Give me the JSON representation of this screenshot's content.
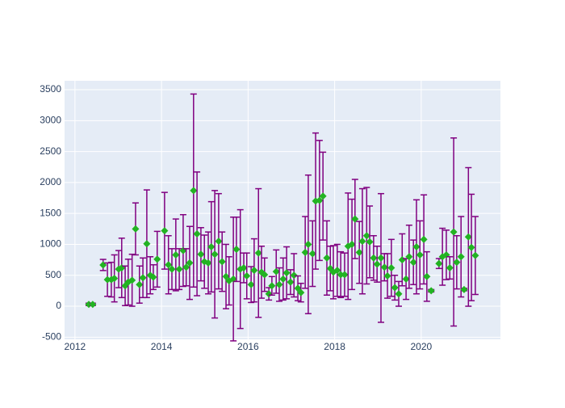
{
  "chart_data": {
    "type": "scatter",
    "x": [
      2012.32,
      2012.41,
      2012.65,
      2012.75,
      2012.84,
      2012.91,
      2013.01,
      2013.08,
      2013.16,
      2013.23,
      2013.32,
      2013.4,
      2013.49,
      2013.57,
      2013.66,
      2013.74,
      2013.81,
      2013.9,
      2014.07,
      2014.16,
      2014.24,
      2014.33,
      2014.41,
      2014.5,
      2014.57,
      2014.65,
      2014.74,
      2014.82,
      2014.91,
      2014.99,
      2015.08,
      2015.15,
      2015.23,
      2015.32,
      2015.4,
      2015.49,
      2015.56,
      2015.66,
      2015.73,
      2015.82,
      2015.9,
      2015.97,
      2016.07,
      2016.14,
      2016.24,
      2016.31,
      2016.38,
      2016.48,
      2016.55,
      2016.65,
      2016.72,
      2016.81,
      2016.89,
      2016.98,
      2017.06,
      2017.15,
      2017.22,
      2017.32,
      2017.39,
      2017.49,
      2017.56,
      2017.65,
      2017.73,
      2017.82,
      2017.9,
      2017.97,
      2018.06,
      2018.14,
      2018.23,
      2018.31,
      2018.4,
      2018.47,
      2018.57,
      2018.64,
      2018.74,
      2018.81,
      2018.9,
      2018.98,
      2019.07,
      2019.15,
      2019.22,
      2019.31,
      2019.39,
      2019.48,
      2019.56,
      2019.65,
      2019.72,
      2019.82,
      2019.89,
      2019.97,
      2020.06,
      2020.13,
      2020.23,
      2020.41,
      2020.49,
      2020.58,
      2020.66,
      2020.75,
      2020.82,
      2020.92,
      2020.99,
      2021.09,
      2021.16,
      2021.25
    ],
    "values": [
      30,
      30,
      667,
      430,
      430,
      450,
      600,
      620,
      330,
      390,
      420,
      1250,
      350,
      460,
      1010,
      500,
      470,
      760,
      1220,
      670,
      600,
      830,
      600,
      900,
      630,
      700,
      1870,
      1170,
      840,
      720,
      700,
      960,
      840,
      1050,
      720,
      480,
      410,
      440,
      920,
      600,
      620,
      490,
      350,
      580,
      860,
      550,
      510,
      200,
      330,
      560,
      350,
      440,
      540,
      390,
      500,
      290,
      220,
      870,
      1000,
      850,
      1700,
      1710,
      1780,
      780,
      610,
      550,
      580,
      510,
      510,
      970,
      1000,
      1410,
      870,
      1050,
      1140,
      1040,
      780,
      680,
      780,
      630,
      490,
      620,
      300,
      200,
      750,
      440,
      800,
      710,
      960,
      830,
      1080,
      480,
      250,
      690,
      800,
      830,
      620,
      1200,
      710,
      800,
      270,
      1120,
      950,
      820
    ],
    "errors": [
      20,
      20,
      90,
      270,
      280,
      380,
      300,
      480,
      320,
      370,
      420,
      420,
      300,
      320,
      870,
      300,
      200,
      450,
      620,
      470,
      330,
      580,
      330,
      580,
      300,
      590,
      1560,
      1000,
      430,
      430,
      500,
      730,
      1030,
      770,
      480,
      520,
      390,
      1000,
      520,
      960,
      240,
      370,
      290,
      510,
      1040,
      420,
      270,
      100,
      150,
      350,
      270,
      340,
      420,
      200,
      350,
      200,
      150,
      580,
      1120,
      530,
      1100,
      970,
      710,
      600,
      360,
      430,
      420,
      370,
      350,
      860,
      730,
      640,
      500,
      850,
      780,
      580,
      360,
      290,
      1040,
      220,
      360,
      460,
      200,
      200,
      420,
      330,
      510,
      360,
      760,
      550,
      720,
      400,
      20,
      80,
      460,
      400,
      180,
      1520,
      430,
      650,
      20,
      1120,
      860,
      630
    ],
    "color": "#22b322",
    "error_color": "#800080",
    "xlim": [
      2011.76,
      2021.83
    ],
    "ylim": [
      -535,
      3644
    ],
    "xticks": [
      2012,
      2014,
      2016,
      2018,
      2020
    ],
    "yticks": [
      -500,
      0,
      500,
      1000,
      1500,
      2000,
      2500,
      3000,
      3500
    ],
    "grid": true
  }
}
